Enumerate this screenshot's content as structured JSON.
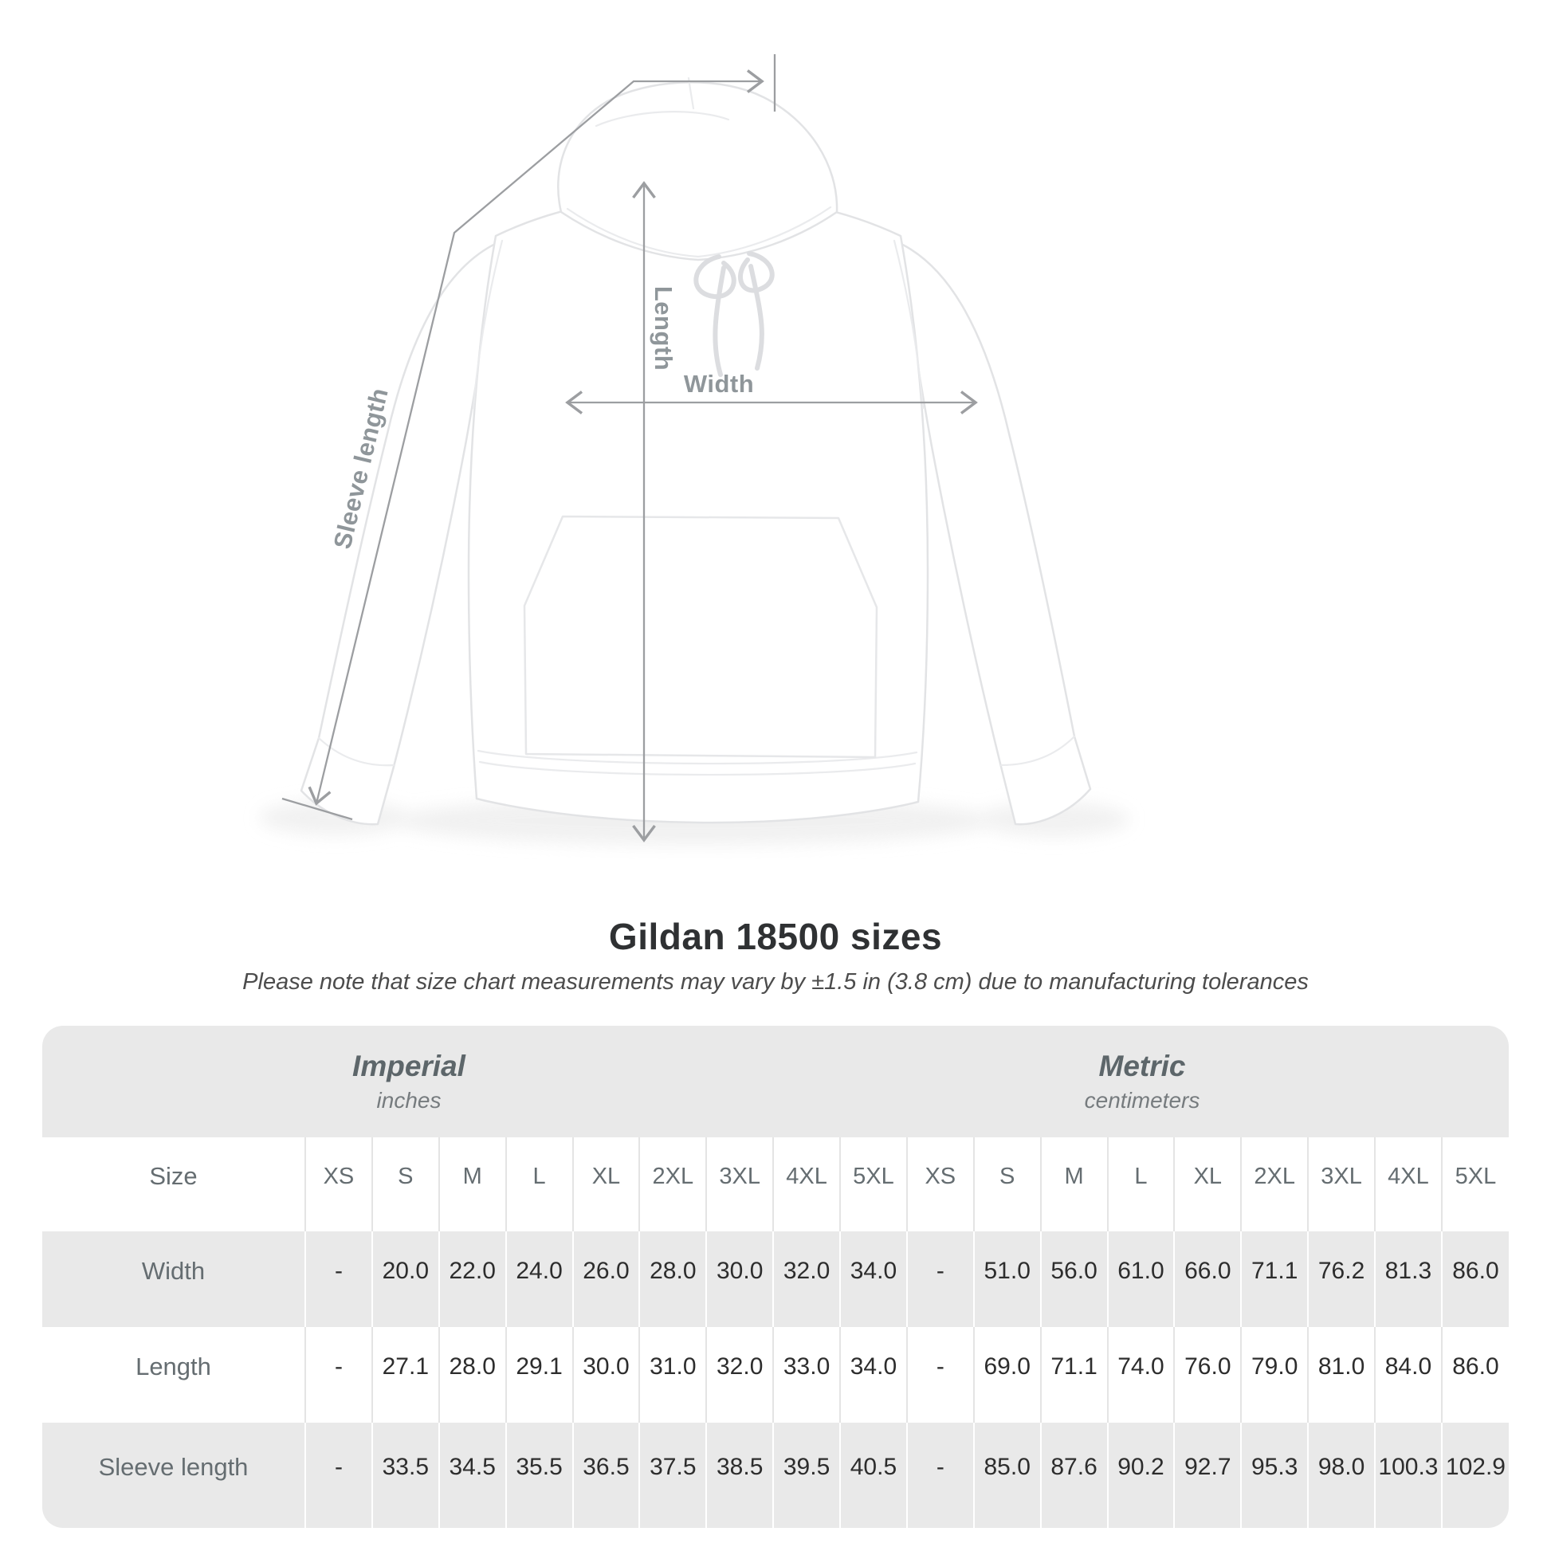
{
  "title": "Gildan 18500 sizes",
  "subtitle": "Please note that size chart measurements may vary by ±1.5 in (3.8 cm) due to manufacturing tolerances",
  "diagram": {
    "labels": {
      "sleeve": "Sleeve length",
      "length": "Length",
      "width": "Width"
    }
  },
  "table": {
    "unit_groups": [
      {
        "name": "Imperial",
        "unit": "inches"
      },
      {
        "name": "Metric",
        "unit": "centimeters"
      }
    ],
    "size_header": "Size",
    "sizes": [
      "XS",
      "S",
      "M",
      "L",
      "XL",
      "2XL",
      "3XL",
      "4XL",
      "5XL"
    ],
    "rows": [
      {
        "label": "Width",
        "imperial": [
          "-",
          "20.0",
          "22.0",
          "24.0",
          "26.0",
          "28.0",
          "30.0",
          "32.0",
          "34.0"
        ],
        "metric": [
          "-",
          "51.0",
          "56.0",
          "61.0",
          "66.0",
          "71.1",
          "76.2",
          "81.3",
          "86.0"
        ]
      },
      {
        "label": "Length",
        "imperial": [
          "-",
          "27.1",
          "28.0",
          "29.1",
          "30.0",
          "31.0",
          "32.0",
          "33.0",
          "34.0"
        ],
        "metric": [
          "-",
          "69.0",
          "71.1",
          "74.0",
          "76.0",
          "79.0",
          "81.0",
          "84.0",
          "86.0"
        ]
      },
      {
        "label": "Sleeve length",
        "imperial": [
          "-",
          "33.5",
          "34.5",
          "35.5",
          "36.5",
          "37.5",
          "38.5",
          "39.5",
          "40.5"
        ],
        "metric": [
          "-",
          "85.0",
          "87.6",
          "90.2",
          "92.7",
          "95.3",
          "98.0",
          "100.3",
          "102.9"
        ]
      }
    ]
  },
  "chart_data": {
    "type": "table",
    "title": "Gildan 18500 sizes",
    "columns": [
      "Size",
      "XS",
      "S",
      "M",
      "L",
      "XL",
      "2XL",
      "3XL",
      "4XL",
      "5XL"
    ],
    "imperial_unit": "inches",
    "metric_unit": "centimeters",
    "rows_imperial": [
      [
        "Width",
        null,
        20.0,
        22.0,
        24.0,
        26.0,
        28.0,
        30.0,
        32.0,
        34.0
      ],
      [
        "Length",
        null,
        27.1,
        28.0,
        29.1,
        30.0,
        31.0,
        32.0,
        33.0,
        34.0
      ],
      [
        "Sleeve length",
        null,
        33.5,
        34.5,
        35.5,
        36.5,
        37.5,
        38.5,
        39.5,
        40.5
      ]
    ],
    "rows_metric": [
      [
        "Width",
        null,
        51.0,
        56.0,
        61.0,
        66.0,
        71.1,
        76.2,
        81.3,
        86.0
      ],
      [
        "Length",
        null,
        69.0,
        71.1,
        74.0,
        76.0,
        79.0,
        81.0,
        84.0,
        86.0
      ],
      [
        "Sleeve length",
        null,
        85.0,
        87.6,
        90.2,
        92.7,
        95.3,
        98.0,
        100.3,
        102.9
      ]
    ]
  },
  "colors": {
    "measure_line": "#9c9ea1",
    "measure_label": "#8f969a",
    "stripe_row": "#e9e9e9",
    "header_text": "#656d71",
    "value_text": "#2d2d2d"
  }
}
